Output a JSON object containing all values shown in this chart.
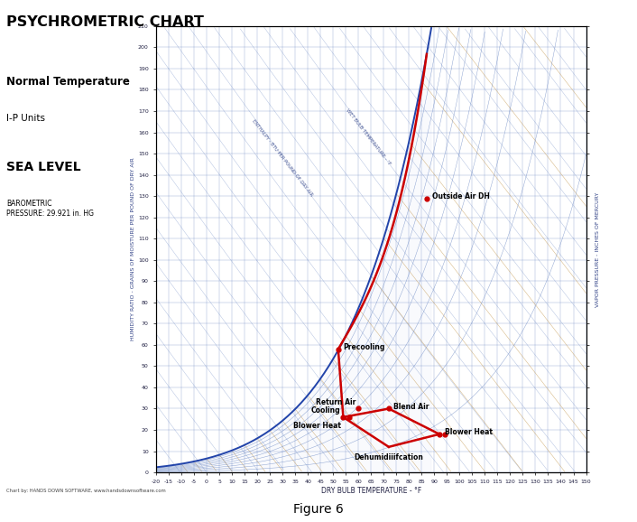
{
  "title": "PSYCHROMETRIC CHART",
  "subtitle1": "Normal Temperature",
  "subtitle2": "I-P Units",
  "subtitle3": "SEA LEVEL",
  "subtitle4": "BAROMETRIC\nPRESSURE: 29.921 in. HG",
  "figure_label": "Figure 6",
  "credit": "Chart by: HANDS DOWN SOFTWARE, www.handsdownsoftware.com",
  "background_color": "#ffffff",
  "blue": "#5577bb",
  "blue_dark": "#2244aa",
  "gold": "#bb8833",
  "red": "#cc0000",
  "gray": "#888888",
  "db_min": -20,
  "db_max": 150,
  "hr_min": 0,
  "hr_max": 210,
  "process_points": {
    "Outside_Air_DH": {
      "db": 87,
      "hr": 129
    },
    "Precooling": {
      "db": 52,
      "hr": 58
    },
    "Return_Air": {
      "db": 60,
      "hr": 30
    },
    "Cooling": {
      "db": 54,
      "hr": 26
    },
    "Blend_Air": {
      "db": 72,
      "hr": 30
    },
    "Blower_Heat_2": {
      "db": 92,
      "hr": 18
    },
    "Dehumidification": {
      "db": 72,
      "hr": 12
    }
  }
}
